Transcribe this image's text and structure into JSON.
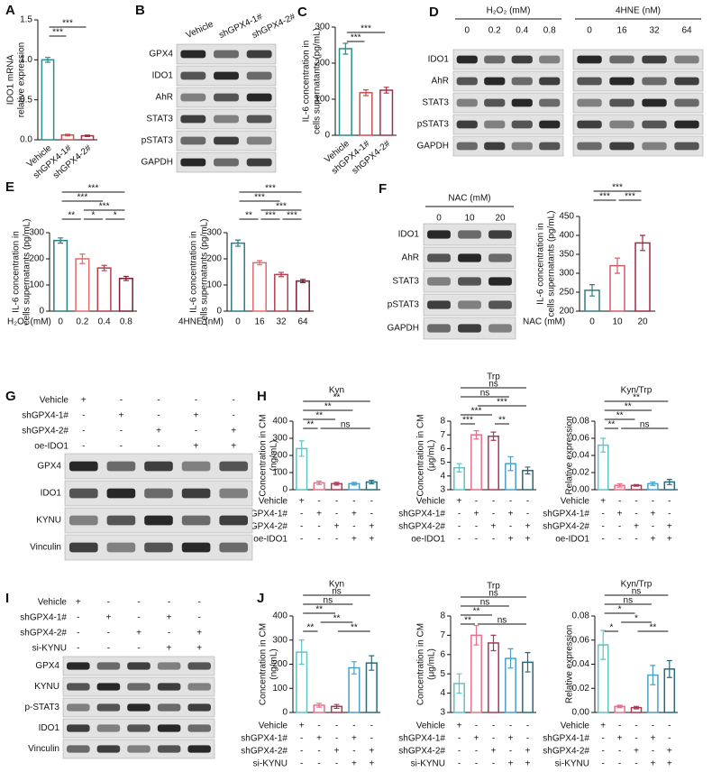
{
  "panels": [
    "A",
    "B",
    "C",
    "D",
    "E",
    "F",
    "G",
    "H",
    "I",
    "J"
  ],
  "chart_data": [
    {
      "type": "bar",
      "ylabel": [
        "IDO1 mRNA",
        "relative expression"
      ],
      "categories": [
        "Vehicle",
        "shGPX4-1#",
        "shGPX4-2#"
      ],
      "values": [
        1.0,
        0.06,
        0.05
      ],
      "errors": [
        0.03,
        0.01,
        0.01
      ],
      "colors": [
        "#2a8c8c",
        "#c8504f",
        "#a0304a"
      ],
      "ylim": [
        0,
        1.5
      ],
      "yticks": [
        {
          "value": 0,
          "label": "0.0"
        },
        0.5,
        {
          "value": 1,
          "label": "1.0"
        },
        1.5
      ],
      "significance": [
        {
          "label": "***",
          "bars": [
            0,
            1
          ]
        },
        {
          "label": "***",
          "bars": [
            0,
            2
          ]
        }
      ]
    },
    {
      "type": "bar",
      "ylabel": [
        "IL-6 concentration in",
        "cells supernatants (pg/mL)"
      ],
      "categories": [
        "Vehicle",
        "shGPX4-1#",
        "shGPX4-2#"
      ],
      "values": [
        240,
        118,
        125
      ],
      "errors": [
        15,
        8,
        8
      ],
      "colors": [
        "#2a8c8c",
        "#c8504f",
        "#a0304a"
      ],
      "ylim": [
        0,
        300
      ],
      "yticks": [
        0,
        100,
        200,
        300
      ],
      "significance": [
        {
          "label": "***",
          "bars": [
            0,
            1
          ]
        },
        {
          "label": "***",
          "bars": [
            0,
            2
          ]
        }
      ]
    },
    {
      "type": "bar",
      "ylabel": [
        "IL-6 concentration in",
        "cells supernatants (pg/mL)"
      ],
      "xlabel": "H₂O₂ (mM)",
      "categories": [
        0,
        0.2,
        0.4,
        0.8
      ],
      "values": [
        270,
        200,
        165,
        125
      ],
      "errors": [
        10,
        18,
        10,
        8
      ],
      "colors": [
        "#2a7c84",
        "#e06a6a",
        "#b0404f",
        "#7a2030"
      ],
      "ylim": [
        0,
        300
      ],
      "yticks": [
        0,
        100,
        200,
        300
      ],
      "significance": [
        {
          "label": "*",
          "bars": [
            1,
            2
          ]
        },
        {
          "label": "*",
          "bars": [
            2,
            3
          ]
        },
        {
          "label": "**",
          "bars": [
            0,
            1
          ]
        },
        {
          "label": "***",
          "bars": [
            1,
            3
          ]
        },
        {
          "label": "***",
          "bars": [
            0,
            2
          ]
        },
        {
          "label": "***",
          "bars": [
            0,
            3
          ]
        }
      ]
    },
    {
      "type": "bar",
      "ylabel": [
        "IL-6 concentration in",
        "cells supernatants (pg/mL)"
      ],
      "xlabel": "4HNE (nM)",
      "categories": [
        0,
        16,
        32,
        64
      ],
      "values": [
        260,
        185,
        140,
        115
      ],
      "errors": [
        12,
        8,
        8,
        6
      ],
      "colors": [
        "#2a7c84",
        "#e06a6a",
        "#b0404f",
        "#7a2030"
      ],
      "ylim": [
        0,
        300
      ],
      "yticks": [
        0,
        100,
        200,
        300
      ],
      "significance": [
        {
          "label": "***",
          "bars": [
            1,
            2
          ]
        },
        {
          "label": "***",
          "bars": [
            2,
            3
          ]
        },
        {
          "label": "**",
          "bars": [
            0,
            1
          ]
        },
        {
          "label": "***",
          "bars": [
            1,
            3
          ]
        },
        {
          "label": "***",
          "bars": [
            0,
            2
          ]
        },
        {
          "label": "***",
          "bars": [
            0,
            3
          ]
        }
      ]
    },
    {
      "type": "bar",
      "ylabel": [
        "IL-6 concentration in",
        "cells supernatants (pg/mL)"
      ],
      "xlabel": "NAC (mM)",
      "categories": [
        0,
        10,
        20
      ],
      "values": [
        255,
        320,
        380
      ],
      "errors": [
        15,
        20,
        20
      ],
      "colors": [
        "#2f7f80",
        "#d05a6a",
        "#a02840"
      ],
      "ylim": [
        200,
        450
      ],
      "yticks": [
        200,
        250,
        300,
        350,
        400,
        450
      ],
      "significance": [
        {
          "label": "***",
          "bars": [
            0,
            1
          ]
        },
        {
          "label": "***",
          "bars": [
            1,
            2
          ]
        },
        {
          "label": "***",
          "bars": [
            0,
            2
          ]
        }
      ]
    },
    {
      "type": "bar",
      "title": "Kyn",
      "ylabel": [
        "Concentration in CM",
        "(ng/mL)"
      ],
      "values": [
        240,
        40,
        35,
        35,
        45
      ],
      "errors": [
        45,
        10,
        8,
        8,
        10
      ],
      "colors": [
        "#5ec4c4",
        "#e8708a",
        "#a83a55",
        "#4aa0c8",
        "#2a6a78"
      ],
      "ylim": [
        0,
        400
      ],
      "yticks": [
        0,
        100,
        200,
        300,
        400
      ],
      "significance": [
        {
          "label": "**",
          "bars": [
            0,
            1
          ]
        },
        {
          "label": "ns",
          "bars": [
            1,
            4
          ]
        },
        {
          "label": "**",
          "bars": [
            0,
            2
          ]
        },
        {
          "label": "**",
          "bars": [
            0,
            3
          ]
        },
        {
          "label": "**",
          "bars": [
            0,
            4
          ]
        }
      ],
      "conditions": [
        {
          "name": "Vehicle",
          "marks": [
            "+",
            "-",
            "-",
            "-",
            "-"
          ]
        },
        {
          "name": "shGPX4-1#",
          "marks": [
            "-",
            "+",
            "-",
            "+",
            "-"
          ]
        },
        {
          "name": "shGPX4-2#",
          "marks": [
            "-",
            "-",
            "+",
            "-",
            "+"
          ]
        },
        {
          "name": "oe-IDO1",
          "marks": [
            "-",
            "-",
            "-",
            "+",
            "+"
          ]
        }
      ]
    },
    {
      "type": "bar",
      "title": "Trp",
      "ylabel": [
        "Concentration in CM",
        "(μg/mL)"
      ],
      "values": [
        4.6,
        7.0,
        6.9,
        4.9,
        4.4
      ],
      "errors": [
        0.3,
        0.3,
        0.3,
        0.5,
        0.25
      ],
      "colors": [
        "#5ec4c4",
        "#e8708a",
        "#a83a55",
        "#4aa0c8",
        "#2a6a78"
      ],
      "ylim": [
        3,
        8
      ],
      "yticks": [
        3,
        4,
        5,
        6,
        7,
        8
      ],
      "significance": [
        {
          "label": "***",
          "bars": [
            0,
            1
          ]
        },
        {
          "label": "**",
          "bars": [
            2,
            3
          ]
        },
        {
          "label": "***",
          "bars": [
            0,
            2
          ]
        },
        {
          "label": "***",
          "bars": [
            1,
            4
          ]
        },
        {
          "label": "ns",
          "bars": [
            0,
            3
          ]
        },
        {
          "label": "ns",
          "bars": [
            0,
            4
          ]
        }
      ],
      "conditions": [
        {
          "name": "Vehicle",
          "marks": [
            "+",
            "-",
            "-",
            "-",
            "-"
          ]
        },
        {
          "name": "shGPX4-1#",
          "marks": [
            "-",
            "+",
            "-",
            "+",
            "-"
          ]
        },
        {
          "name": "shGPX4-2#",
          "marks": [
            "-",
            "-",
            "+",
            "-",
            "+"
          ]
        },
        {
          "name": "oe-IDO1",
          "marks": [
            "-",
            "-",
            "-",
            "+",
            "+"
          ]
        }
      ]
    },
    {
      "type": "bar",
      "title": "Kyn/Trp",
      "ylabel": [
        "Relative expression"
      ],
      "values": [
        0.052,
        0.005,
        0.005,
        0.007,
        0.009
      ],
      "errors": [
        0.008,
        0.002,
        0.001,
        0.002,
        0.003
      ],
      "colors": [
        "#5ec4c4",
        "#e8708a",
        "#a83a55",
        "#4aa0c8",
        "#2a6a78"
      ],
      "ylim": [
        0,
        0.08
      ],
      "yticks": [
        {
          "value": 0,
          "label": "0.00"
        },
        0.02,
        0.04,
        0.06,
        0.08
      ],
      "significance": [
        {
          "label": "**",
          "bars": [
            0,
            1
          ]
        },
        {
          "label": "ns",
          "bars": [
            1,
            4
          ]
        },
        {
          "label": "**",
          "bars": [
            0,
            2
          ]
        },
        {
          "label": "**",
          "bars": [
            0,
            3
          ]
        },
        {
          "label": "**",
          "bars": [
            0,
            4
          ]
        }
      ],
      "conditions": [
        {
          "name": "Vehicle",
          "marks": [
            "+",
            "-",
            "-",
            "-",
            "-"
          ]
        },
        {
          "name": "shGPX4-1#",
          "marks": [
            "-",
            "+",
            "-",
            "+",
            "-"
          ]
        },
        {
          "name": "shGPX4-2#",
          "marks": [
            "-",
            "-",
            "+",
            "-",
            "+"
          ]
        },
        {
          "name": "oe-IDO1",
          "marks": [
            "-",
            "-",
            "-",
            "+",
            "+"
          ]
        }
      ]
    },
    {
      "type": "bar",
      "title": "Kyn",
      "ylabel": [
        "Concentration in CM",
        "(ng/mL)"
      ],
      "values": [
        250,
        30,
        25,
        185,
        205
      ],
      "errors": [
        50,
        8,
        8,
        25,
        30
      ],
      "colors": [
        "#5ec4c4",
        "#e8708a",
        "#a83a55",
        "#4aa0c8",
        "#2a6a78"
      ],
      "ylim": [
        0,
        400
      ],
      "yticks": [
        0,
        100,
        200,
        300,
        400
      ],
      "significance": [
        {
          "label": "**",
          "bars": [
            0,
            1
          ]
        },
        {
          "label": "**",
          "bars": [
            2,
            4
          ]
        },
        {
          "label": "**",
          "bars": [
            1,
            3
          ]
        },
        {
          "label": "**",
          "bars": [
            0,
            2
          ]
        },
        {
          "label": "ns",
          "bars": [
            0,
            3
          ]
        },
        {
          "label": "ns",
          "bars": [
            0,
            4
          ]
        }
      ],
      "conditions": [
        {
          "name": "Vehicle",
          "marks": [
            "+",
            "-",
            "-",
            "-",
            "-"
          ]
        },
        {
          "name": "shGPX4-1#",
          "marks": [
            "-",
            "+",
            "-",
            "+",
            "-"
          ]
        },
        {
          "name": "shGPX4-2#",
          "marks": [
            "-",
            "-",
            "+",
            "-",
            "+"
          ]
        },
        {
          "name": "si-KYNU",
          "marks": [
            "-",
            "-",
            "-",
            "+",
            "+"
          ]
        }
      ]
    },
    {
      "type": "bar",
      "title": "Trp",
      "ylabel": [
        "Concentration in CM",
        "(μg/mL)"
      ],
      "values": [
        4.5,
        7.0,
        6.6,
        5.8,
        5.6
      ],
      "errors": [
        0.5,
        0.5,
        0.4,
        0.5,
        0.5
      ],
      "colors": [
        "#5ec4c4",
        "#e8708a",
        "#a83a55",
        "#4aa0c8",
        "#2a6a78"
      ],
      "ylim": [
        3,
        8
      ],
      "yticks": [
        3,
        4,
        5,
        6,
        7,
        8
      ],
      "significance": [
        {
          "label": "**",
          "bars": [
            0,
            1
          ]
        },
        {
          "label": "ns",
          "bars": [
            1,
            4
          ]
        },
        {
          "label": "**",
          "bars": [
            0,
            2
          ]
        },
        {
          "label": "ns",
          "bars": [
            0,
            3
          ]
        },
        {
          "label": "ns",
          "bars": [
            0,
            4
          ]
        }
      ],
      "conditions": [
        {
          "name": "Vehicle",
          "marks": [
            "+",
            "-",
            "-",
            "-",
            "-"
          ]
        },
        {
          "name": "shGPX4-1#",
          "marks": [
            "-",
            "+",
            "-",
            "+",
            "-"
          ]
        },
        {
          "name": "shGPX4-2#",
          "marks": [
            "-",
            "-",
            "+",
            "-",
            "+"
          ]
        },
        {
          "name": "si-KYNU",
          "marks": [
            "-",
            "-",
            "-",
            "+",
            "+"
          ]
        }
      ]
    },
    {
      "type": "bar",
      "title": "Kyn/Trp",
      "ylabel": [
        "Relative expression"
      ],
      "values": [
        0.056,
        0.005,
        0.004,
        0.031,
        0.036
      ],
      "errors": [
        0.012,
        0.001,
        0.001,
        0.008,
        0.007
      ],
      "colors": [
        "#5ec4c4",
        "#e8708a",
        "#a83a55",
        "#4aa0c8",
        "#2a6a78"
      ],
      "ylim": [
        0,
        0.08
      ],
      "yticks": [
        {
          "value": 0,
          "label": "0.00"
        },
        0.02,
        0.04,
        0.06,
        0.08
      ],
      "significance": [
        {
          "label": "*",
          "bars": [
            0,
            1
          ]
        },
        {
          "label": "**",
          "bars": [
            2,
            4
          ]
        },
        {
          "label": "*",
          "bars": [
            1,
            3
          ]
        },
        {
          "label": "*",
          "bars": [
            0,
            2
          ]
        },
        {
          "label": "ns",
          "bars": [
            0,
            3
          ]
        },
        {
          "label": "ns",
          "bars": [
            0,
            4
          ]
        }
      ],
      "conditions": [
        {
          "name": "Vehicle",
          "marks": [
            "+",
            "-",
            "-",
            "-",
            "-"
          ]
        },
        {
          "name": "shGPX4-1#",
          "marks": [
            "-",
            "+",
            "-",
            "+",
            "-"
          ]
        },
        {
          "name": "shGPX4-2#",
          "marks": [
            "-",
            "-",
            "+",
            "-",
            "+"
          ]
        },
        {
          "name": "si-KYNU",
          "marks": [
            "-",
            "-",
            "-",
            "+",
            "+"
          ]
        }
      ]
    }
  ],
  "blots": [
    {
      "lanes": [
        "Vehicle",
        "shGPX4-1#",
        "shGPX4-2#"
      ],
      "rows": [
        "GPX4",
        "IDO1",
        "AhR",
        "STAT3",
        "pSTAT3",
        "GAPDH"
      ]
    },
    {
      "groups": [
        {
          "title": "H₂O₂ (mM)",
          "lanes": [
            0,
            0.2,
            0.4,
            0.8
          ]
        },
        {
          "title": "4HNE (nM)",
          "lanes": [
            0,
            16,
            32,
            64
          ]
        }
      ],
      "rows": [
        "IDO1",
        "AhR",
        "STAT3",
        "pSTAT3",
        "GAPDH"
      ]
    },
    {
      "groups": [
        {
          "title": "NAC (mM)",
          "lanes": [
            0,
            10,
            20
          ]
        }
      ],
      "rows": [
        "IDO1",
        "AhR",
        "STAT3",
        "pSTAT3",
        "GAPDH"
      ]
    },
    {
      "conditions": [
        {
          "name": "Vehicle",
          "marks": [
            "+",
            "-",
            "-",
            "-",
            "-"
          ]
        },
        {
          "name": "shGPX4-1#",
          "marks": [
            "-",
            "+",
            "-",
            "+",
            "-"
          ]
        },
        {
          "name": "shGPX4-2#",
          "marks": [
            "-",
            "-",
            "+",
            "-",
            "+"
          ]
        },
        {
          "name": "oe-IDO1",
          "marks": [
            "-",
            "-",
            "-",
            "+",
            "+"
          ]
        }
      ],
      "rows": [
        "GPX4",
        "IDO1",
        "KYNU",
        "Vinculin"
      ]
    },
    {
      "conditions": [
        {
          "name": "Vehicle",
          "marks": [
            "+",
            "-",
            "-",
            "-",
            "-"
          ]
        },
        {
          "name": "shGPX4-1#",
          "marks": [
            "-",
            "+",
            "-",
            "+",
            "-"
          ]
        },
        {
          "name": "shGPX4-2#",
          "marks": [
            "-",
            "-",
            "+",
            "-",
            "+"
          ]
        },
        {
          "name": "si-KYNU",
          "marks": [
            "-",
            "-",
            "-",
            "+",
            "+"
          ]
        }
      ],
      "rows": [
        "GPX4",
        "KYNU",
        "p-STAT3",
        "IDO1",
        "Vinculin"
      ]
    }
  ]
}
